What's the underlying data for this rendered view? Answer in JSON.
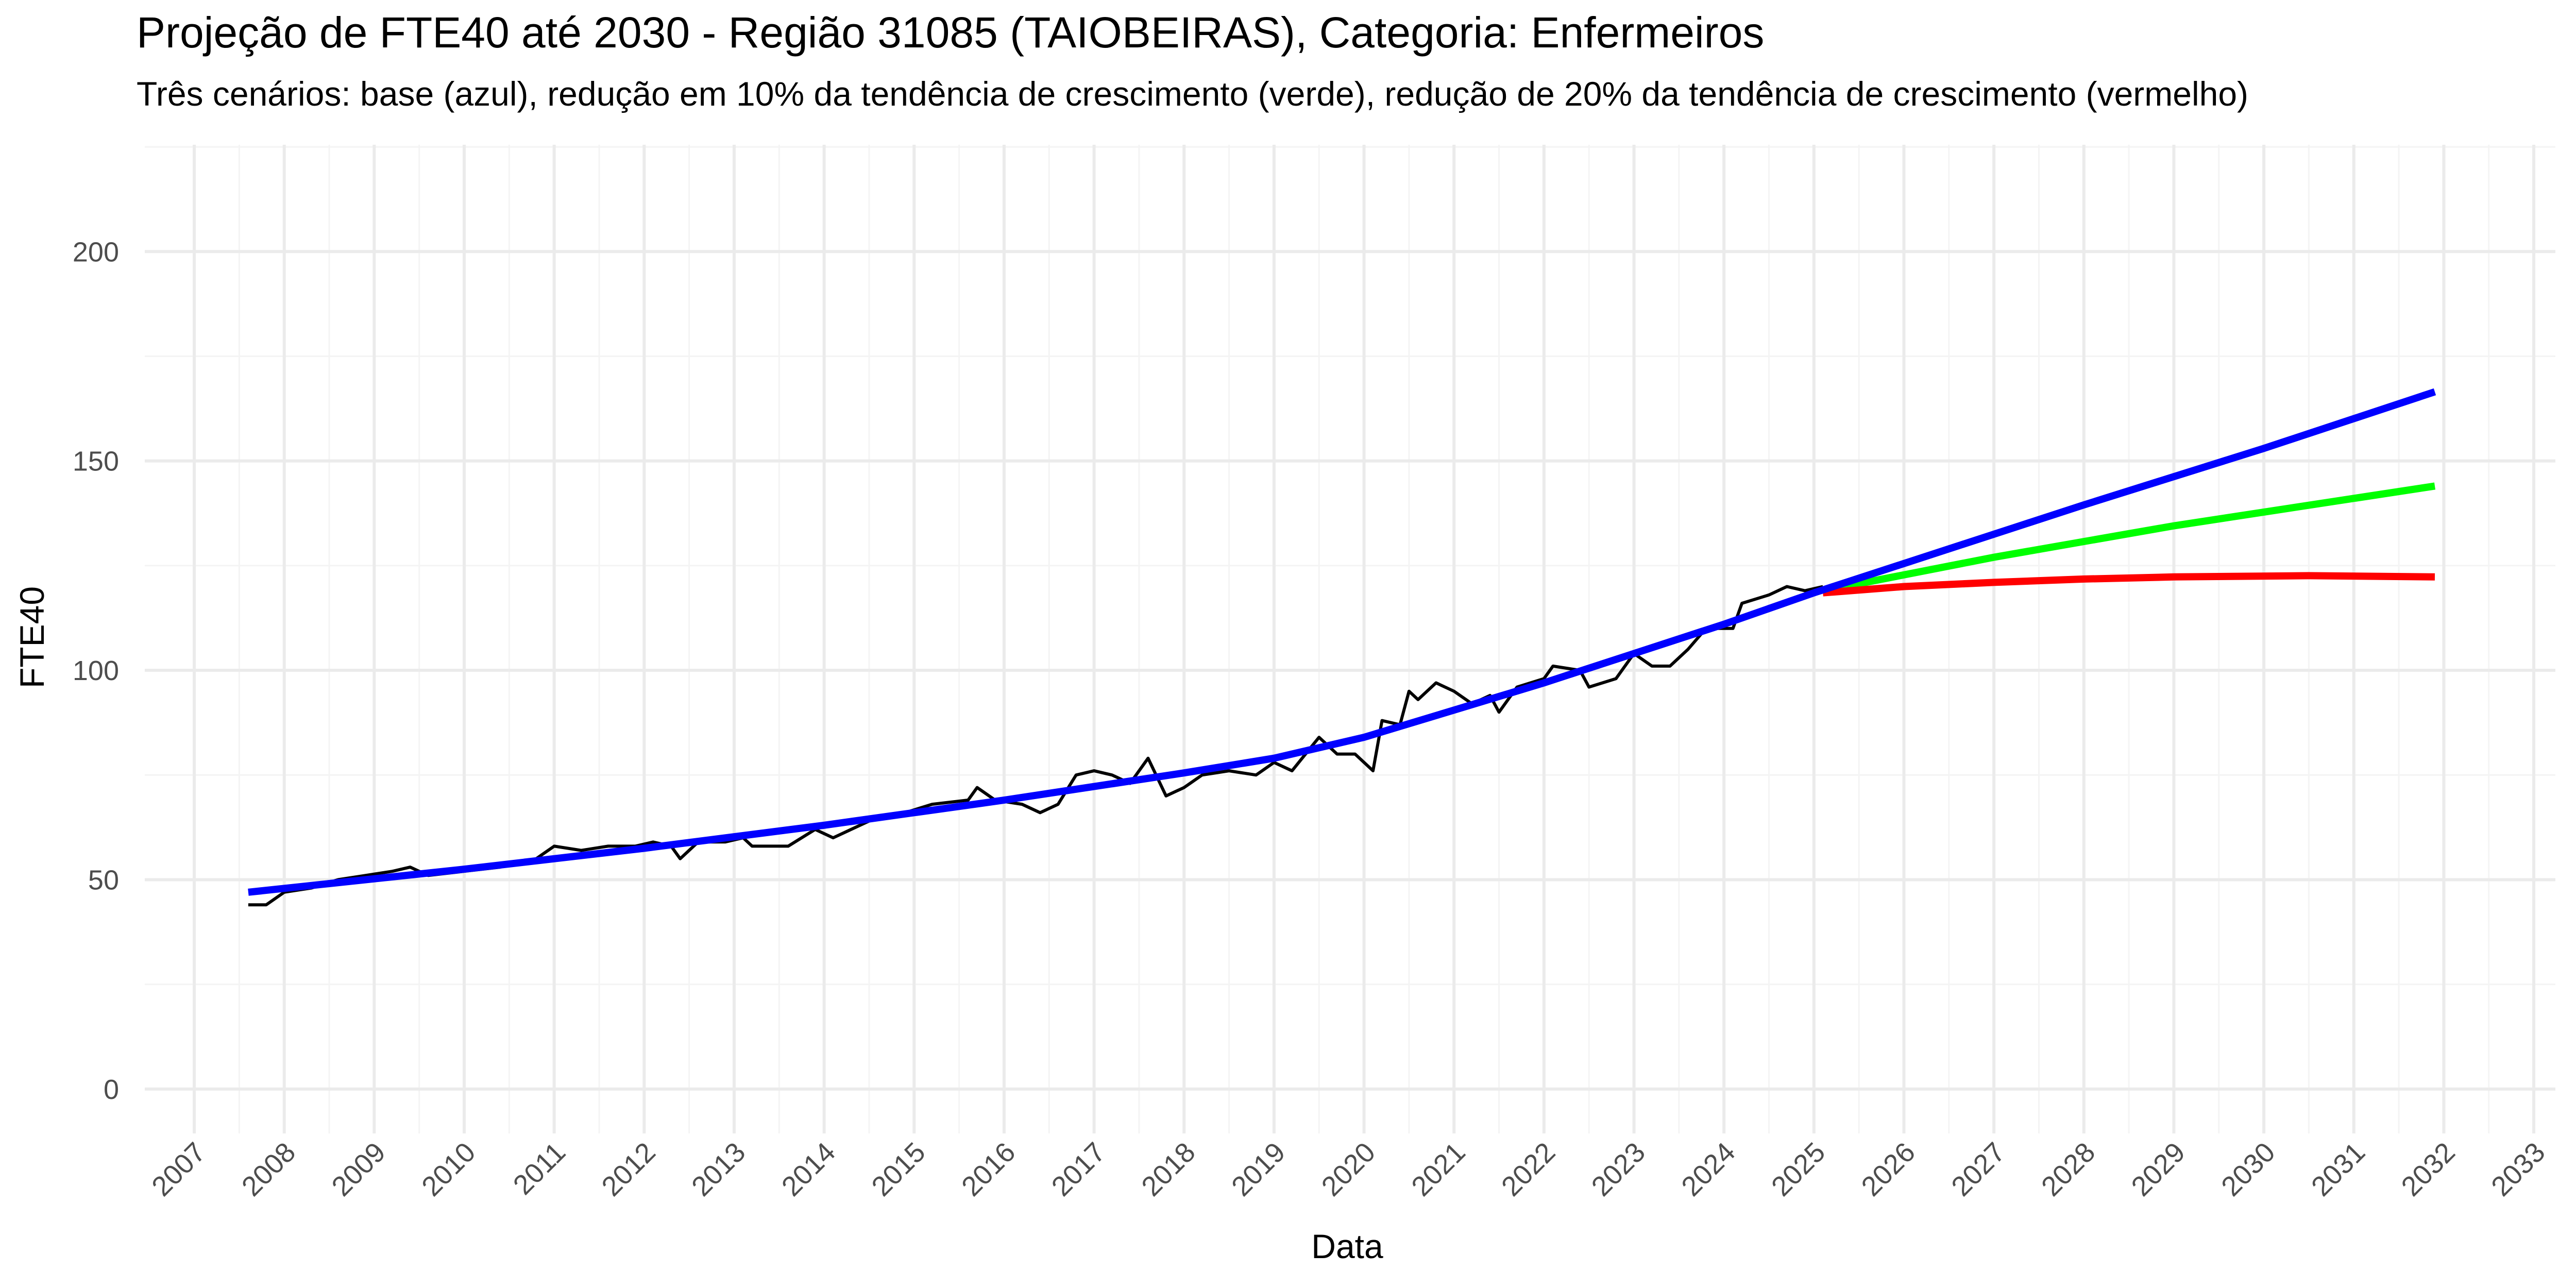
{
  "chart_data": {
    "type": "line",
    "title": "Projeção de FTE40 até 2030 - Região 31085 (TAIOBEIRAS), Categoria: Enfermeiros",
    "subtitle": "Três cenários: base (azul), redução em 10% da tendência de crescimento (verde), redução de 20% da tendência de crescimento (vermelho)",
    "x_label": "Data",
    "y_label": "FTE40",
    "xlim": [
      2006.45,
      2033.24
    ],
    "ylim": [
      -10.6,
      225.5
    ],
    "xticks": [
      2007,
      2008,
      2009,
      2010,
      2011,
      2012,
      2013,
      2014,
      2015,
      2016,
      2017,
      2018,
      2019,
      2020,
      2021,
      2022,
      2023,
      2024,
      2025,
      2026,
      2027,
      2028,
      2029,
      2030,
      2031,
      2032,
      2033
    ],
    "yticks": [
      0,
      50,
      100,
      150,
      200
    ],
    "grid": true,
    "minor_grid": true,
    "series": [
      {
        "color": "#000000",
        "width": 6,
        "x": [
          2007.6,
          2007.8,
          2008.0,
          2008.3,
          2008.6,
          2008.9,
          2009.2,
          2009.4,
          2009.6,
          2010.0,
          2010.4,
          2010.8,
          2011.0,
          2011.3,
          2011.6,
          2011.9,
          2012.1,
          2012.3,
          2012.4,
          2012.6,
          2012.9,
          2013.1,
          2013.2,
          2013.6,
          2013.9,
          2014.1,
          2014.3,
          2014.6,
          2014.9,
          2015.2,
          2015.6,
          2015.7,
          2015.9,
          2016.2,
          2016.4,
          2016.6,
          2016.8,
          2017.0,
          2017.2,
          2017.4,
          2017.6,
          2017.8,
          2018.0,
          2018.2,
          2018.5,
          2018.8,
          2019.0,
          2019.2,
          2019.5,
          2019.7,
          2019.9,
          2020.1,
          2020.2,
          2020.4,
          2020.5,
          2020.6,
          2020.8,
          2021.0,
          2021.2,
          2021.4,
          2021.5,
          2021.7,
          2022.0,
          2022.1,
          2022.4,
          2022.5,
          2022.8,
          2023.0,
          2023.2,
          2023.4,
          2023.6,
          2023.8,
          2024.1,
          2024.2,
          2024.5,
          2024.7,
          2024.9,
          2025.1
        ],
        "values": [
          44,
          44,
          47,
          48,
          50,
          51,
          52,
          53,
          51,
          52,
          53,
          55,
          58,
          57,
          58,
          58,
          59,
          58,
          55,
          59,
          59,
          60,
          58,
          58,
          62,
          60,
          62,
          65,
          66,
          68,
          69,
          72,
          69,
          68,
          66,
          68,
          75,
          76,
          75,
          73,
          79,
          70,
          72,
          75,
          76,
          75,
          78,
          76,
          84,
          80,
          80,
          76,
          88,
          87,
          95,
          93,
          97,
          95,
          92,
          94,
          90,
          96,
          98,
          101,
          100,
          96,
          98,
          104,
          101,
          101,
          105,
          110,
          110,
          116,
          118,
          120,
          119,
          120
        ]
      },
      {
        "color": "#00ff00",
        "width": 14,
        "x": [
          2025.1,
          2027,
          2029,
          2031.9
        ],
        "values": [
          119,
          127,
          134.5,
          144
        ]
      },
      {
        "color": "#ff0000",
        "width": 14,
        "x": [
          2025.1,
          2026,
          2027,
          2028,
          2029,
          2030.5,
          2031.9
        ],
        "values": [
          118.5,
          120,
          121,
          121.8,
          122.3,
          122.6,
          122.3
        ]
      },
      {
        "color": "#0000ff",
        "width": 14,
        "x": [
          2007.6,
          2010,
          2012,
          2014,
          2016,
          2018,
          2019,
          2020,
          2021,
          2022,
          2023,
          2024,
          2025,
          2026,
          2028,
          2030,
          2031.9
        ],
        "values": [
          47,
          52.5,
          57.5,
          63,
          69,
          75.5,
          79,
          84,
          90.5,
          97,
          104,
          111,
          118.5,
          125.5,
          139.5,
          153,
          166.5
        ]
      }
    ]
  }
}
